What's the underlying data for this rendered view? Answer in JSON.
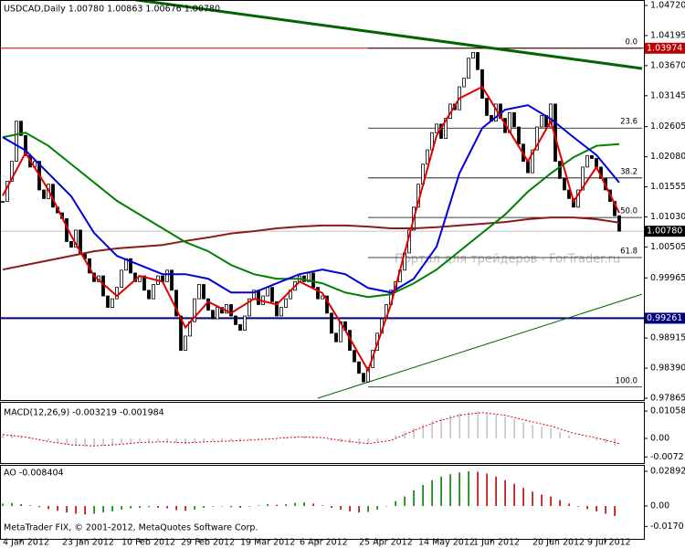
{
  "chart_data": {
    "type": "candlestick",
    "title": "USDCAD,Daily 1.00780 1.00863 1.00676 1.00780",
    "categories": [
      null,
      null,
      null,
      null,
      "4 Jan 2012",
      null,
      null,
      null,
      null,
      null,
      null,
      null,
      null,
      null,
      null,
      null,
      null,
      "23 Jan 2012",
      null,
      null,
      null,
      null,
      null,
      null,
      null,
      null,
      null,
      null,
      null,
      null,
      "10 Feb 2012",
      null,
      null,
      null,
      null,
      null,
      null,
      null,
      null,
      null,
      null,
      null,
      null,
      "29 Feb 2012",
      null,
      null,
      null,
      null,
      null,
      null,
      null,
      null,
      null,
      null,
      null,
      null,
      "19 Mar 2012",
      null,
      null,
      null,
      null,
      null,
      null,
      null,
      null,
      null,
      null,
      null,
      null,
      "6 Apr 2012",
      null,
      null,
      null,
      null,
      null,
      null,
      null,
      null,
      null,
      null,
      null,
      null,
      "25 Apr 2012",
      null,
      null,
      null,
      null,
      null,
      null,
      null,
      null,
      null,
      null,
      null,
      null,
      "14 May 2012",
      null,
      null,
      null,
      null,
      null,
      null,
      null,
      null,
      null,
      null,
      null,
      "1 Jun 2012",
      null,
      null,
      null,
      null,
      null,
      null,
      null,
      null,
      null,
      null,
      null,
      null,
      "20 Jun 2012",
      null,
      null,
      null,
      null,
      null,
      null,
      null,
      null,
      null,
      null,
      null,
      "9 Jul 2012",
      null,
      null,
      null
    ],
    "closes": [
      1.013,
      1.0165,
      1.02,
      1.027,
      1.0245,
      1.021,
      1.019,
      1.02,
      1.015,
      1.0135,
      1.016,
      1.012,
      1.011,
      1.01,
      1.006,
      1.005,
      1.008,
      1.004,
      1.003,
      1.0005,
      0.999,
      1.0,
      0.9965,
      0.9945,
      0.996,
      0.998,
      1.001,
      1.003,
      1.0005,
      0.999,
      1.0,
      0.9975,
      0.996,
      0.9985,
      1.0,
      0.999,
      1.001,
      0.9975,
      0.993,
      0.987,
      0.9895,
      0.992,
      0.996,
      0.9985,
      0.996,
      0.994,
      0.9925,
      0.9945,
      0.9935,
      0.995,
      0.993,
      0.9915,
      0.9905,
      0.993,
      0.996,
      0.9975,
      0.995,
      0.9965,
      0.998,
      0.9955,
      0.993,
      0.9945,
      0.996,
      0.9975,
      0.999,
      1.0,
      0.999,
      1.0005,
      0.998,
      0.996,
      0.9965,
      0.9935,
      0.99,
      0.9885,
      0.992,
      0.9905,
      0.987,
      0.985,
      0.983,
      0.9815,
      0.984,
      0.987,
      0.99,
      0.9925,
      0.995,
      0.9975,
      0.999,
      1.001,
      1.004,
      1.008,
      1.012,
      1.016,
      1.0195,
      1.022,
      1.025,
      1.0265,
      1.024,
      1.0275,
      1.03,
      1.029,
      1.033,
      1.0345,
      1.038,
      1.039,
      1.036,
      1.031,
      1.028,
      1.027,
      1.03,
      1.0275,
      1.025,
      1.0285,
      1.026,
      1.023,
      1.02,
      1.018,
      1.022,
      1.026,
      1.028,
      1.026,
      1.03,
      1.02,
      1.017,
      1.015,
      1.0135,
      1.012,
      1.015,
      1.019,
      1.021,
      1.0205,
      1.019,
      1.017,
      1.015,
      1.013,
      1.0105,
      1.0078
    ],
    "up_color": "#ffffff",
    "down_color": "#000000",
    "ylim": [
      0.97865,
      1.0472
    ],
    "yticks": [
      {
        "value": 1.0472,
        "label": "1.04720"
      },
      1.04195,
      {
        "value": 1.0367,
        "label": "1.03670"
      },
      1.03145,
      1.02605,
      {
        "value": 1.0208,
        "label": "1.02080"
      },
      1.01555,
      {
        "value": 1.0103,
        "label": "1.01030"
      },
      1.00505,
      0.99965,
      0.98915,
      {
        "value": 0.9839,
        "label": "0.98390"
      },
      0.97865
    ],
    "levels": [
      {
        "value": 1.03974,
        "color": "#c00000"
      },
      {
        "value": {
          "value": 1.0078,
          "label": "1.00780"
        },
        "color": "#000000"
      },
      {
        "value": 0.99261,
        "color": "#000080"
      }
    ],
    "ma_x": [
      0,
      5,
      10,
      15,
      20,
      25,
      30,
      35,
      40,
      45,
      50,
      55,
      60,
      65,
      70,
      75,
      80,
      85,
      90,
      95,
      100,
      105,
      110,
      115,
      120,
      125,
      130,
      135
    ],
    "moving_averages": [
      {
        "color": "#8b1a1a",
        "values": [
          1.0011,
          1.0019,
          1.0027,
          1.0035,
          1.0043,
          1.0048,
          1.0051,
          1.0054,
          1.0061,
          1.0067,
          1.0074,
          1.0078,
          1.0083,
          1.0086,
          1.0088,
          1.0088,
          1.0086,
          1.0083,
          1.0083,
          1.0085,
          1.0088,
          1.0091,
          1.0094,
          1.0099,
          1.0102,
          1.0102,
          1.0099,
          1.0093
        ]
      },
      {
        "color": "#008000",
        "values": [
          1.0242,
          1.025,
          1.0227,
          1.0195,
          1.0163,
          1.0131,
          1.0107,
          1.0083,
          1.0059,
          1.0043,
          1.0019,
          1.0003,
          0.9995,
          0.9995,
          0.9987,
          0.9971,
          0.9963,
          0.9968,
          0.9987,
          1.0011,
          1.0043,
          1.0075,
          1.0107,
          1.0147,
          1.0179,
          1.0207,
          1.0227,
          1.023
        ]
      },
      {
        "color": "#0000dd",
        "values": [
          1.0242,
          1.0219,
          1.0179,
          1.0139,
          1.0075,
          1.0035,
          1.0019,
          1.0003,
          1.0003,
          0.9995,
          0.9971,
          0.9971,
          0.9987,
          1.0003,
          1.0011,
          1.0003,
          0.9979,
          0.9971,
          0.9995,
          1.0051,
          1.0179,
          1.0258,
          1.029,
          1.0298,
          1.0274,
          1.0242,
          1.0211,
          1.0163
        ]
      },
      {
        "color": "#e00000",
        "values": [
          1.014,
          1.0215,
          1.015,
          1.007,
          1.0,
          0.9965,
          1.0,
          0.999,
          0.991,
          0.9955,
          0.9935,
          0.996,
          0.995,
          0.999,
          0.997,
          0.9905,
          0.9835,
          0.995,
          1.01,
          1.0245,
          1.031,
          1.033,
          1.0265,
          1.02,
          1.027,
          1.013,
          1.019,
          1.011
        ]
      }
    ],
    "trendlines": [
      {
        "color": "#006400",
        "width": 3,
        "x": [
          29,
          140
        ],
        "values": [
          1.0482,
          1.0362
        ]
      },
      {
        "color": "#006400",
        "width": 1,
        "x": [
          69,
          140
        ],
        "values": [
          0.97865,
          0.9968
        ]
      }
    ],
    "fibo": {
      "labels": [
        "0.0",
        "23.6",
        "38.2",
        "50.0",
        "61.8",
        "100.0"
      ],
      "values": [
        1.03974,
        1.0258,
        1.0171,
        1.0102,
        1.0032,
        0.9806
      ],
      "x": [
        80,
        140
      ]
    },
    "watermark": "Портал для трейдеров - ForTrader.ru",
    "footer": "MetaTrader FIX, © 2001-2012, MetaQuotes Software Corp.",
    "indicators": [
      {
        "type": "macd",
        "title": "MACD(12,26,9) -0.003219 -0.001984",
        "ylim": [
          -0.0092,
          0.0138
        ],
        "yticks": [
          0.010582,
          {
            "value": 0,
            "label": "0.00"
          },
          -0.00721
        ],
        "x": [
          0,
          2,
          4,
          6,
          8,
          10,
          12,
          14,
          16,
          18,
          20,
          22,
          24,
          26,
          28,
          30,
          32,
          34,
          36,
          38,
          40,
          42,
          44,
          46,
          48,
          50,
          52,
          54,
          56,
          58,
          60,
          62,
          64,
          66,
          68,
          70,
          72,
          74,
          76,
          78,
          80,
          82,
          84,
          86,
          88,
          90,
          92,
          94,
          96,
          98,
          100,
          102,
          104,
          106,
          108,
          110,
          112,
          114,
          116,
          118,
          120,
          122,
          124,
          126,
          128,
          130,
          132,
          134
        ],
        "values": [
          0.0012,
          0.0015,
          0.001,
          0.0005,
          0.0,
          -0.0008,
          -0.0015,
          -0.0022,
          -0.0028,
          -0.0031,
          -0.003,
          -0.0028,
          -0.0025,
          -0.002,
          -0.0016,
          -0.0014,
          -0.0013,
          -0.0012,
          -0.0013,
          -0.0018,
          -0.0022,
          -0.0018,
          -0.0012,
          -0.001,
          -0.0009,
          -0.001,
          -0.0011,
          -0.0006,
          -0.0002,
          0.0002,
          0.0001,
          0.0003,
          0.0006,
          0.0008,
          0.0005,
          0.0,
          -0.0008,
          -0.0014,
          -0.0019,
          -0.0024,
          -0.0022,
          -0.0012,
          0.0,
          0.0012,
          0.0026,
          0.004,
          0.0055,
          0.0068,
          0.0078,
          0.0088,
          0.0096,
          0.0102,
          0.0105,
          0.01,
          0.0092,
          0.0084,
          0.0075,
          0.0062,
          0.0052,
          0.0045,
          0.004,
          0.0025,
          0.0012,
          0.0002,
          -0.0002,
          -0.0008,
          -0.0018,
          -0.003
        ],
        "color": "#b0b0b0",
        "signal": {
          "color": "#e00000",
          "values": [
            0.0015,
            0.0005,
            -0.0012,
            -0.0025,
            -0.0029,
            -0.0024,
            -0.0016,
            -0.0013,
            -0.0017,
            -0.0013,
            -0.001,
            -0.0006,
            0.0,
            0.0006,
            0.0003,
            -0.001,
            -0.002,
            -0.0008,
            0.003,
            0.0065,
            0.009,
            0.01,
            0.009,
            0.0068,
            0.0048,
            0.002,
            0.0002,
            -0.002
          ]
        }
      },
      {
        "type": "ao",
        "title": "AO -0.008404",
        "ylim": [
          -0.0274,
          0.0335
        ],
        "yticks": [
          0.028923,
          {
            "value": 0,
            "label": "0.00"
          },
          {
            "value": -0.017,
            "label": "-0.0170"
          }
        ],
        "x": [
          0,
          2,
          4,
          6,
          8,
          10,
          12,
          14,
          16,
          18,
          20,
          22,
          24,
          26,
          28,
          30,
          32,
          34,
          36,
          38,
          40,
          42,
          44,
          46,
          48,
          50,
          52,
          54,
          56,
          58,
          60,
          62,
          64,
          66,
          68,
          70,
          72,
          74,
          76,
          78,
          80,
          82,
          84,
          86,
          88,
          90,
          92,
          94,
          96,
          98,
          100,
          102,
          104,
          106,
          108,
          110,
          112,
          114,
          116,
          118,
          120,
          122,
          124,
          126,
          128,
          130,
          132,
          134
        ],
        "values": [
          0.002,
          0.0025,
          0.0015,
          0.0005,
          -0.001,
          -0.0025,
          -0.004,
          -0.0055,
          -0.0065,
          -0.007,
          -0.0065,
          -0.0055,
          -0.0045,
          -0.003,
          -0.002,
          -0.0015,
          -0.001,
          -0.0015,
          -0.002,
          -0.0035,
          -0.004,
          -0.003,
          -0.0015,
          -0.0005,
          0.0,
          -0.001,
          -0.0015,
          -0.0005,
          0.0005,
          0.0015,
          0.001,
          0.0015,
          0.0025,
          0.003,
          0.002,
          0.0005,
          -0.0015,
          -0.003,
          -0.0045,
          -0.0055,
          -0.005,
          -0.003,
          0.0,
          0.004,
          0.008,
          0.013,
          0.0175,
          0.0215,
          0.0245,
          0.0265,
          0.028,
          0.0289,
          0.0285,
          0.027,
          0.0245,
          0.0215,
          0.0185,
          0.015,
          0.012,
          0.0095,
          0.008,
          0.005,
          0.002,
          -0.0005,
          -0.0025,
          -0.0045,
          -0.0065,
          -0.0084
        ],
        "up_color": "#008000",
        "down_color": "#c00000"
      }
    ]
  }
}
